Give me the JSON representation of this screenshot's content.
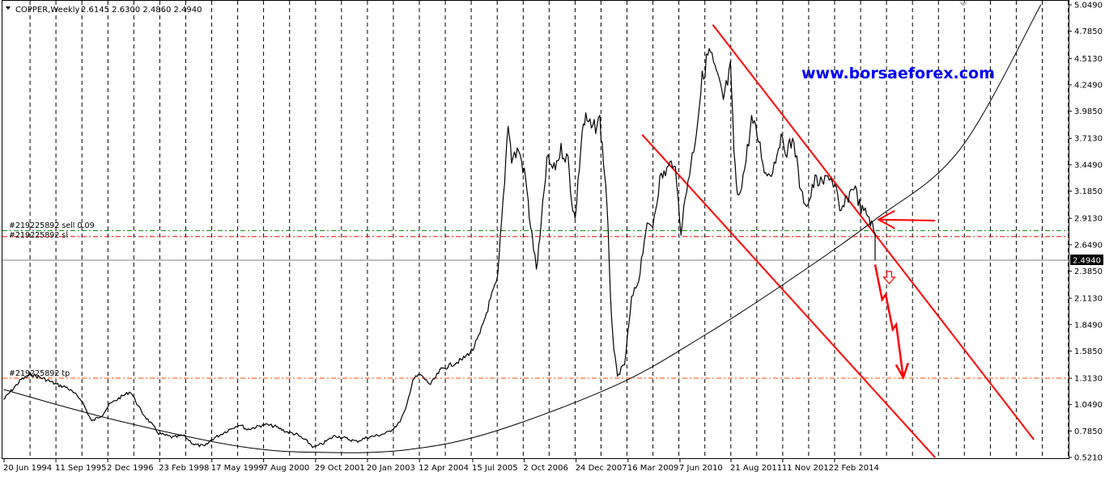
{
  "header": {
    "symbol_label": "COPPER,Weekly",
    "ohlc_label": "2.6145 2.6300 2.4860 2.4940"
  },
  "watermark": "www.borsaeforex.com",
  "chart_data": {
    "type": "line",
    "symbol": "COPPER",
    "timeframe": "Weekly",
    "ohlc": {
      "open": 2.6145,
      "high": 2.63,
      "low": 2.486,
      "close": 2.494
    },
    "x_tick_labels": [
      "20 Jun 1994",
      "11 Sep 1995",
      "2 Dec 1996",
      "23 Feb 1998",
      "17 May 1999",
      "7 Aug 2000",
      "29 Oct 2001",
      "20 Jan 2003",
      "12 Apr 2004",
      "15 Jul 2005",
      "2 Oct 2006",
      "24 Dec 2007",
      "16 Mar 2009",
      "7 Jun 2010",
      "21 Aug 2011",
      "11 Nov 2012",
      "2 Feb 2014"
    ],
    "y_tick_labels": [
      "5.0490",
      "4.7850",
      "4.5130",
      "4.2490",
      "3.9850",
      "3.7130",
      "3.4490",
      "3.1850",
      "2.9130",
      "2.6490",
      "2.3850",
      "2.1130",
      "1.8490",
      "1.5850",
      "1.3130",
      "1.0490",
      "0.7850",
      "0.5210"
    ],
    "ylim": [
      0.521,
      5.049
    ],
    "grid": "vertical dashed",
    "current_price_label": "2.4940",
    "series": [
      {
        "name": "COPPER,Weekly",
        "points": [
          [
            "Jun 1994",
            1.1
          ],
          [
            "Nov 1994",
            1.3
          ],
          [
            "Feb 1995",
            1.35
          ],
          [
            "Jun 1995",
            1.3
          ],
          [
            "Sep 1995",
            1.25
          ],
          [
            "Dec 1995",
            1.22
          ],
          [
            "Apr 1996",
            1.1
          ],
          [
            "Jul 1996",
            0.88
          ],
          [
            "Oct 1996",
            0.95
          ],
          [
            "Dec 1996",
            1.05
          ],
          [
            "Mar 1997",
            1.12
          ],
          [
            "Jun 1997",
            1.18
          ],
          [
            "Sep 1997",
            0.98
          ],
          [
            "Dec 1997",
            0.85
          ],
          [
            "Feb 1998",
            0.76
          ],
          [
            "Jun 1998",
            0.72
          ],
          [
            "Sep 1998",
            0.74
          ],
          [
            "Dec 1998",
            0.65
          ],
          [
            "Mar 1999",
            0.63
          ],
          [
            "May 1999",
            0.7
          ],
          [
            "Aug 1999",
            0.76
          ],
          [
            "Nov 1999",
            0.82
          ],
          [
            "Jan 2000",
            0.85
          ],
          [
            "Mar 2000",
            0.8
          ],
          [
            "Aug 2000",
            0.85
          ],
          [
            "Nov 2000",
            0.83
          ],
          [
            "Feb 2001",
            0.78
          ],
          [
            "May 2001",
            0.75
          ],
          [
            "Aug 2001",
            0.68
          ],
          [
            "Oct 2001",
            0.62
          ],
          [
            "Dec 2001",
            0.65
          ],
          [
            "Apr 2002",
            0.74
          ],
          [
            "Jul 2002",
            0.71
          ],
          [
            "Oct 2002",
            0.68
          ],
          [
            "Jan 2003",
            0.72
          ],
          [
            "Apr 2003",
            0.74
          ],
          [
            "Jul 2003",
            0.77
          ],
          [
            "Oct 2003",
            0.86
          ],
          [
            "Dec 2003",
            1.0
          ],
          [
            "Feb 2004",
            1.3
          ],
          [
            "Apr 2004",
            1.35
          ],
          [
            "Jul 2004",
            1.25
          ],
          [
            "Oct 2004",
            1.4
          ],
          [
            "Jan 2005",
            1.45
          ],
          [
            "Apr 2005",
            1.5
          ],
          [
            "Jul 2005",
            1.6
          ],
          [
            "Sep 2005",
            1.75
          ],
          [
            "Dec 2005",
            2.1
          ],
          [
            "Feb 2006",
            2.3
          ],
          [
            "Apr 2006",
            3.3
          ],
          [
            "May 2006",
            3.9
          ],
          [
            "Jun 2006",
            3.5
          ],
          [
            "Aug 2006",
            3.6
          ],
          [
            "Oct 2006",
            3.3
          ],
          [
            "Nov 2006",
            2.95
          ],
          [
            "Jan 2007",
            2.4
          ],
          [
            "Feb 2007",
            2.7
          ],
          [
            "Apr 2007",
            3.5
          ],
          [
            "Jun 2007",
            3.4
          ],
          [
            "Aug 2007",
            3.6
          ],
          [
            "Oct 2007",
            3.5
          ],
          [
            "Nov 2007",
            3.1
          ],
          [
            "Dec 2007",
            2.9
          ],
          [
            "Feb 2008",
            3.8
          ],
          [
            "Mar 2008",
            3.9
          ],
          [
            "May 2008",
            3.8
          ],
          [
            "Jul 2008",
            3.9
          ],
          [
            "Aug 2008",
            3.5
          ],
          [
            "Sep 2008",
            3.1
          ],
          [
            "Oct 2008",
            2.1
          ],
          [
            "Nov 2008",
            1.6
          ],
          [
            "Dec 2008",
            1.32
          ],
          [
            "Jan 2009",
            1.4
          ],
          [
            "Feb 2009",
            1.45
          ],
          [
            "Apr 2009",
            2.1
          ],
          [
            "Jun 2009",
            2.3
          ],
          [
            "Aug 2009",
            2.8
          ],
          [
            "Oct 2009",
            2.85
          ],
          [
            "Dec 2009",
            3.3
          ],
          [
            "Feb 2010",
            3.4
          ],
          [
            "Apr 2010",
            3.5
          ],
          [
            "Jun 2010",
            2.8
          ],
          [
            "Aug 2010",
            3.3
          ],
          [
            "Oct 2010",
            3.7
          ],
          [
            "Dec 2010",
            4.3
          ],
          [
            "Feb 2011",
            4.6
          ],
          [
            "Apr 2011",
            4.35
          ],
          [
            "Jun 2011",
            4.1
          ],
          [
            "Aug 2011",
            4.4
          ],
          [
            "Sep 2011",
            3.6
          ],
          [
            "Oct 2011",
            3.1
          ],
          [
            "Dec 2011",
            3.4
          ],
          [
            "Feb 2012",
            3.9
          ],
          [
            "Apr 2012",
            3.7
          ],
          [
            "Jun 2012",
            3.35
          ],
          [
            "Aug 2012",
            3.4
          ],
          [
            "Oct 2012",
            3.7
          ],
          [
            "Dec 2012",
            3.6
          ],
          [
            "Feb 2013",
            3.7
          ],
          [
            "Apr 2013",
            3.15
          ],
          [
            "Jun 2013",
            3.05
          ],
          [
            "Aug 2013",
            3.3
          ],
          [
            "Oct 2013",
            3.25
          ],
          [
            "Dec 2013",
            3.35
          ],
          [
            "Feb 2014",
            3.2
          ],
          [
            "Mar 2014",
            2.95
          ],
          [
            "May 2014",
            3.1
          ],
          [
            "Jul 2014",
            3.25
          ],
          [
            "Sep 2014",
            3.0
          ],
          [
            "Nov 2014",
            2.95
          ],
          [
            "Dec 2014",
            2.85
          ],
          [
            "Jan 2015",
            2.75
          ],
          [
            "Jan 2015",
            2.49
          ]
        ]
      }
    ],
    "levels": [
      {
        "label": "#219225892 sell 0.09",
        "value": 2.79,
        "color": "#008000",
        "style": "dashed"
      },
      {
        "label": "#219225892 sl",
        "value": 2.73,
        "color": "#ff0000",
        "style": "dashed"
      },
      {
        "label": "#219225892 tp",
        "value": 1.313,
        "color": "#ff4400",
        "style": "dashed"
      },
      {
        "label": "",
        "value": 2.494,
        "color": "#808080",
        "style": "solid"
      }
    ],
    "drawn_objects": {
      "channel_color": "#ff0000",
      "curve_color": "#000000",
      "arrow_color": "#ff0000",
      "channel_upper": [
        [
          "Mar 2011",
          4.85
        ],
        [
          "Oct 2018",
          0.7
        ]
      ],
      "channel_lower": [
        [
          "Jul 2009",
          3.75
        ],
        [
          "Jun 2016",
          0.52
        ]
      ],
      "curve": [
        [
          "Jun 1994",
          1.2
        ],
        [
          "Jan 1997",
          0.9
        ],
        [
          "Jan 2000",
          0.63
        ],
        [
          "Jan 2002",
          0.57
        ],
        [
          "Jan 2004",
          0.6
        ],
        [
          "Jan 2006",
          0.78
        ],
        [
          "Dec 2008",
          1.25
        ],
        [
          "Jan 2011",
          1.75
        ],
        [
          "Jan 2013",
          2.3
        ],
        [
          "Jan 2015",
          2.9
        ],
        [
          "Jan 2017",
          3.6
        ],
        [
          "Dec 2018",
          5.05
        ]
      ],
      "zigzag_arrow": [
        [
          "Jan 2015",
          2.45
        ],
        [
          "Mar 2015",
          2.1
        ],
        [
          "Apr 2015",
          2.15
        ],
        [
          "Jun 2015",
          1.8
        ],
        [
          "Jul 2015",
          1.85
        ],
        [
          "Sep 2015",
          1.32
        ]
      ],
      "left_arrow": [
        [
          "Jun 2016",
          2.89
        ],
        [
          "Feb 2015",
          2.9
        ]
      ],
      "down_arrow": [
        "May 2015",
        2.3
      ]
    }
  }
}
